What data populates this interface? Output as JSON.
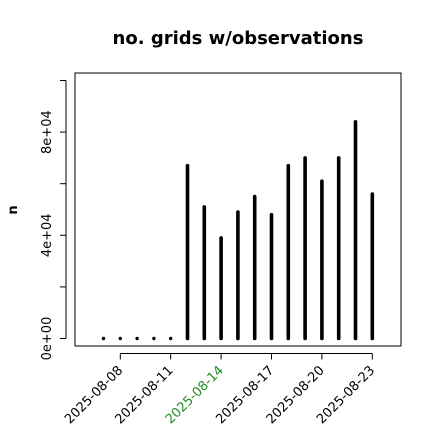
{
  "chart_data": {
    "type": "bar",
    "style": "histogram-spikes",
    "title": "no. grids w/observations",
    "ylabel": "n",
    "xlabel": "",
    "x": [
      "2025-08-07",
      "2025-08-08",
      "2025-08-09",
      "2025-08-10",
      "2025-08-11",
      "2025-08-12",
      "2025-08-13",
      "2025-08-14",
      "2025-08-15",
      "2025-08-16",
      "2025-08-17",
      "2025-08-18",
      "2025-08-19",
      "2025-08-20",
      "2025-08-21",
      "2025-08-22",
      "2025-08-23"
    ],
    "values": [
      0,
      0,
      0,
      0,
      0,
      67000,
      51000,
      39000,
      49000,
      55000,
      48000,
      67000,
      70000,
      61000,
      70000,
      84000,
      56000
    ],
    "ylim": [
      0,
      100000
    ],
    "yticks": [
      0,
      40000,
      80000
    ],
    "ytick_labels": [
      "0e+00",
      "4e+04",
      "8e+04"
    ],
    "xticks": [
      "2025-08-08",
      "2025-08-11",
      "2025-08-14",
      "2025-08-17",
      "2025-08-20",
      "2025-08-23"
    ],
    "xtick_labels": [
      "2025-08-08",
      "2025-08-11",
      "2025-08-14",
      "2025-08-17",
      "2025-08-20",
      "2025-08-23"
    ],
    "xtick_colors": [
      "#000000",
      "#000000",
      "#228B22",
      "#000000",
      "#000000",
      "#000000"
    ],
    "bar_color": "#000000",
    "grid": false,
    "legend": "none"
  }
}
